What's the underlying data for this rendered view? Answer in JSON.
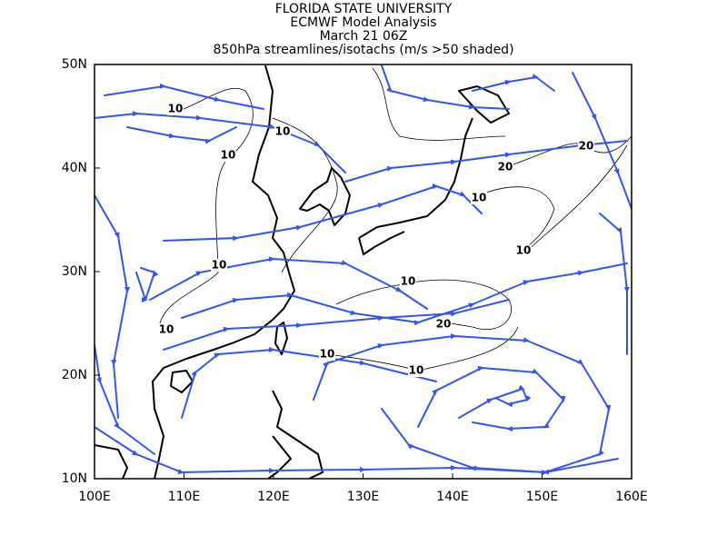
{
  "header": {
    "lines": [
      "FLORIDA STATE UNIVERSITY",
      "ECMWF Model Analysis",
      "March 21 06Z",
      "850hPa streamlines/isotachs (m/s >50 shaded)"
    ]
  },
  "map": {
    "xticks": [
      {
        "value": 100,
        "label": "100E"
      },
      {
        "value": 110,
        "label": "110E"
      },
      {
        "value": 120,
        "label": "120E"
      },
      {
        "value": 130,
        "label": "130E"
      },
      {
        "value": 140,
        "label": "140E"
      },
      {
        "value": 150,
        "label": "150E"
      },
      {
        "value": 160,
        "label": "160E"
      }
    ],
    "yticks": [
      {
        "value": 10,
        "label": "10N"
      },
      {
        "value": 20,
        "label": "20N"
      },
      {
        "value": 30,
        "label": "30N"
      },
      {
        "value": 40,
        "label": "40N"
      },
      {
        "value": 50,
        "label": "50N"
      }
    ],
    "isotach_labels": [
      10,
      10,
      10,
      10,
      10,
      10,
      10,
      10,
      10,
      10,
      20,
      20,
      20
    ]
  }
}
